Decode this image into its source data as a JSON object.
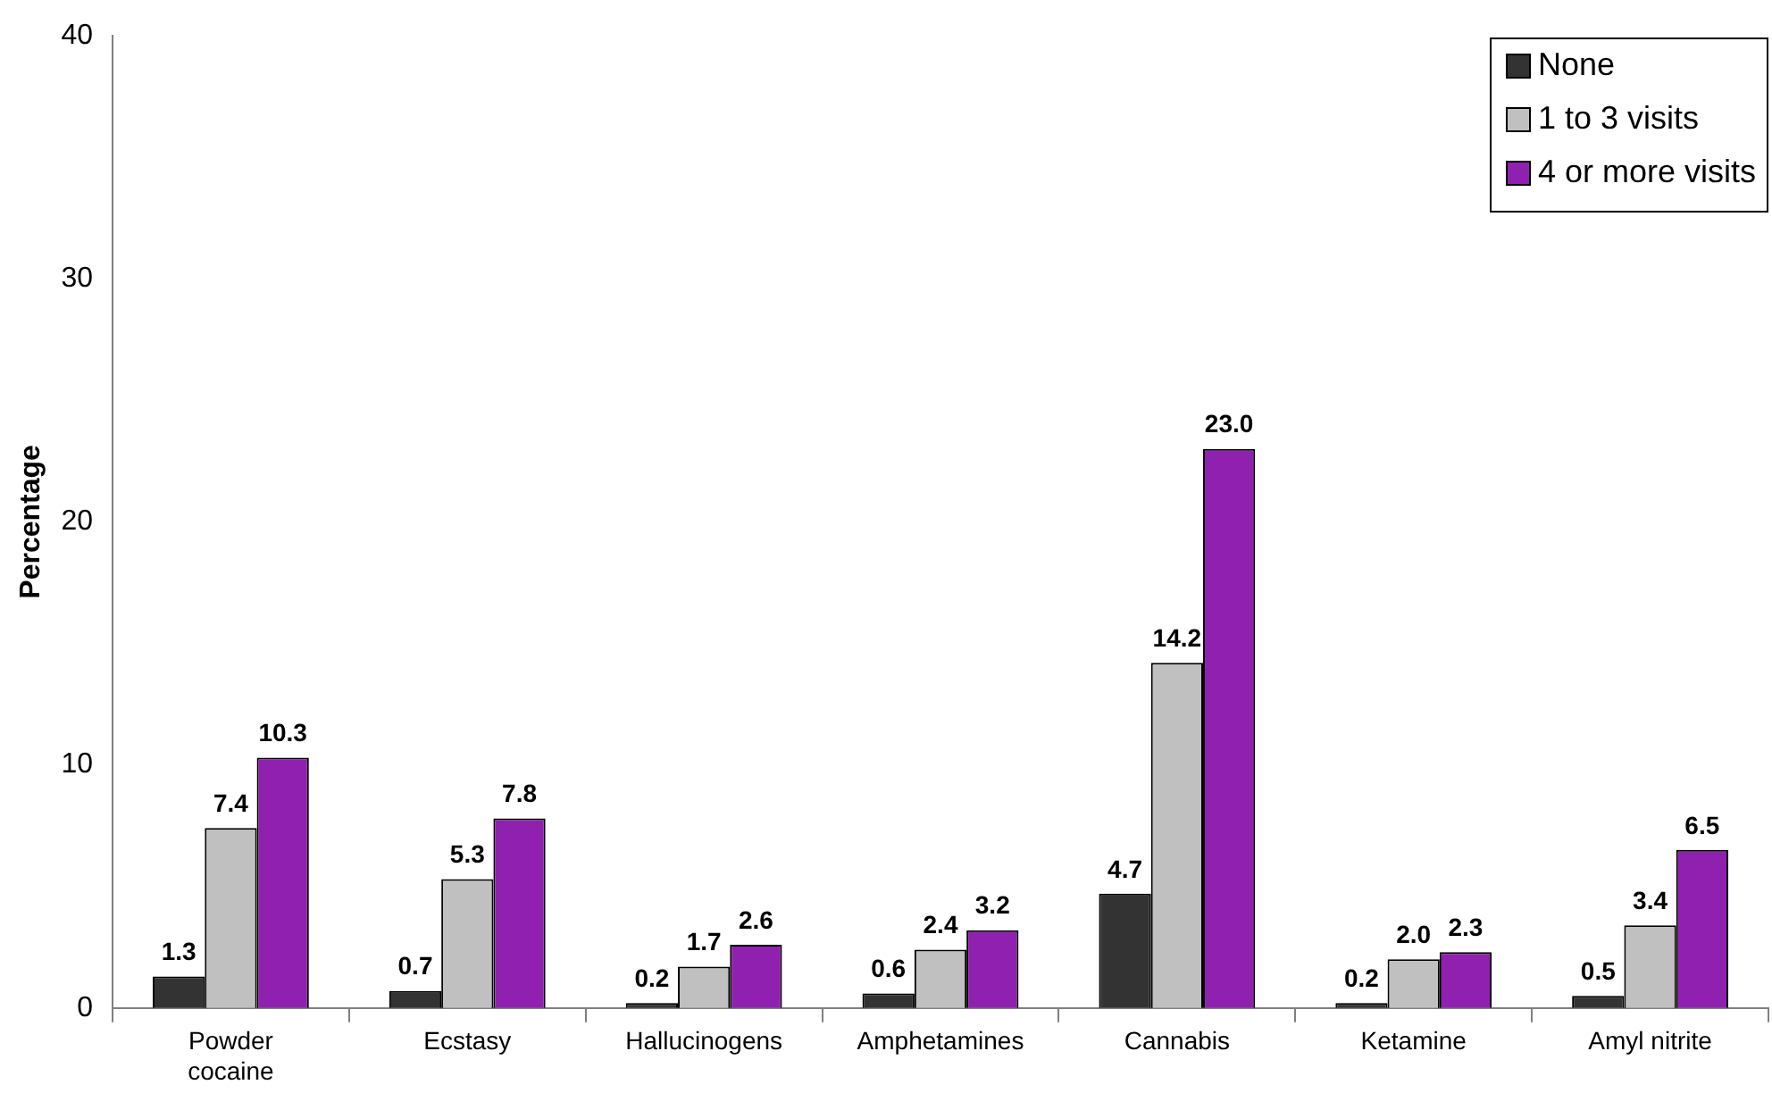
{
  "chart_data": {
    "type": "bar",
    "ylabel": "Percentage",
    "categories": [
      "Powder cocaine",
      "Ecstasy",
      "Hallucinogens",
      "Amphetamines",
      "Cannabis",
      "Ketamine",
      "Amyl nitrite"
    ],
    "series": [
      {
        "name": "None",
        "color": "#333333",
        "values": [
          1.3,
          0.7,
          0.2,
          0.6,
          4.7,
          0.2,
          0.5
        ],
        "value_labels": [
          "1.3",
          "0.7",
          "0.2",
          "0.6",
          "4.7",
          "0.2",
          "0.5"
        ]
      },
      {
        "name": "1 to 3 visits",
        "color": "#c0c0c0",
        "values": [
          7.4,
          5.3,
          1.7,
          2.4,
          14.2,
          2.0,
          3.4
        ],
        "value_labels": [
          "7.4",
          "5.3",
          "1.7",
          "2.4",
          "14.2",
          "2.0",
          "3.4"
        ]
      },
      {
        "name": "4 or more visits",
        "color": "#9020b0",
        "values": [
          10.3,
          7.8,
          2.6,
          3.2,
          23.0,
          2.3,
          6.5
        ],
        "value_labels": [
          "10.3",
          "7.8",
          "2.6",
          "3.2",
          "23.0",
          "2.3",
          "6.5"
        ]
      }
    ],
    "ylim": [
      0,
      40
    ],
    "yticks": [
      0,
      10,
      20,
      30,
      40
    ],
    "grid": false,
    "legend": "top right"
  }
}
